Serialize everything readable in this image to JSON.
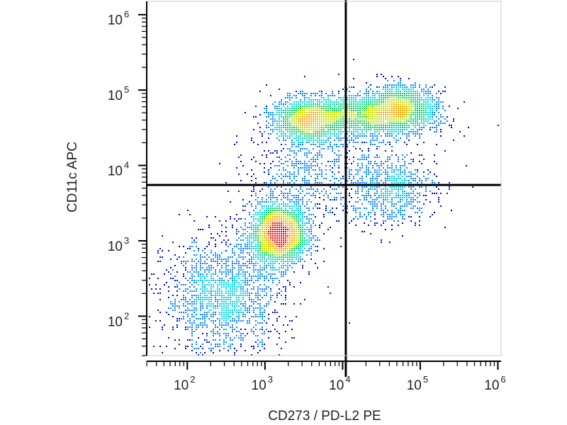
{
  "chart_data": {
    "type": "scatter",
    "title": "",
    "xlabel": "CD273 / PD-L2 PE",
    "ylabel": "CD11c APC",
    "x_scale": "log",
    "y_scale": "log",
    "xlim": [
      30,
      1100000
    ],
    "ylim": [
      30,
      1500000
    ],
    "x_ticks": [
      {
        "value": 100,
        "base": "10",
        "exp": "2"
      },
      {
        "value": 1000,
        "base": "10",
        "exp": "3"
      },
      {
        "value": 10000,
        "base": "10",
        "exp": "4"
      },
      {
        "value": 100000,
        "base": "10",
        "exp": "5"
      },
      {
        "value": 1000000,
        "base": "10",
        "exp": "6"
      }
    ],
    "y_ticks": [
      {
        "value": 100,
        "base": "10",
        "exp": "2"
      },
      {
        "value": 1000,
        "base": "10",
        "exp": "3"
      },
      {
        "value": 10000,
        "base": "10",
        "exp": "4"
      },
      {
        "value": 100000,
        "base": "10",
        "exp": "5"
      },
      {
        "value": 1000000,
        "base": "10",
        "exp": "6"
      }
    ],
    "quadrant_gates": {
      "x": 11000,
      "y": 5500
    },
    "populations": [
      {
        "cx": 1500,
        "cy": 1200,
        "sx": 0.18,
        "sy": 0.2,
        "n": 3200,
        "density": "high"
      },
      {
        "cx": 300,
        "cy": 180,
        "sx": 0.38,
        "sy": 0.38,
        "n": 1800,
        "density": "medium"
      },
      {
        "cx": 3500,
        "cy": 40000,
        "sx": 0.22,
        "sy": 0.14,
        "n": 1600,
        "density": "high"
      },
      {
        "cx": 20000,
        "cy": 45000,
        "sx": 0.4,
        "sy": 0.15,
        "n": 2200,
        "density": "high"
      },
      {
        "cx": 60000,
        "cy": 60000,
        "sx": 0.22,
        "sy": 0.14,
        "n": 1200,
        "density": "high"
      },
      {
        "cx": 40000,
        "cy": 5000,
        "sx": 0.3,
        "sy": 0.25,
        "n": 900,
        "density": "low"
      },
      {
        "cx": 3000,
        "cy": 8000,
        "sx": 0.35,
        "sy": 0.35,
        "n": 700,
        "density": "low"
      }
    ],
    "grid": false,
    "colormap": [
      "#0000cc",
      "#0080ff",
      "#00d0e0",
      "#00d060",
      "#c0e000",
      "#ffa000",
      "#e00000"
    ]
  }
}
